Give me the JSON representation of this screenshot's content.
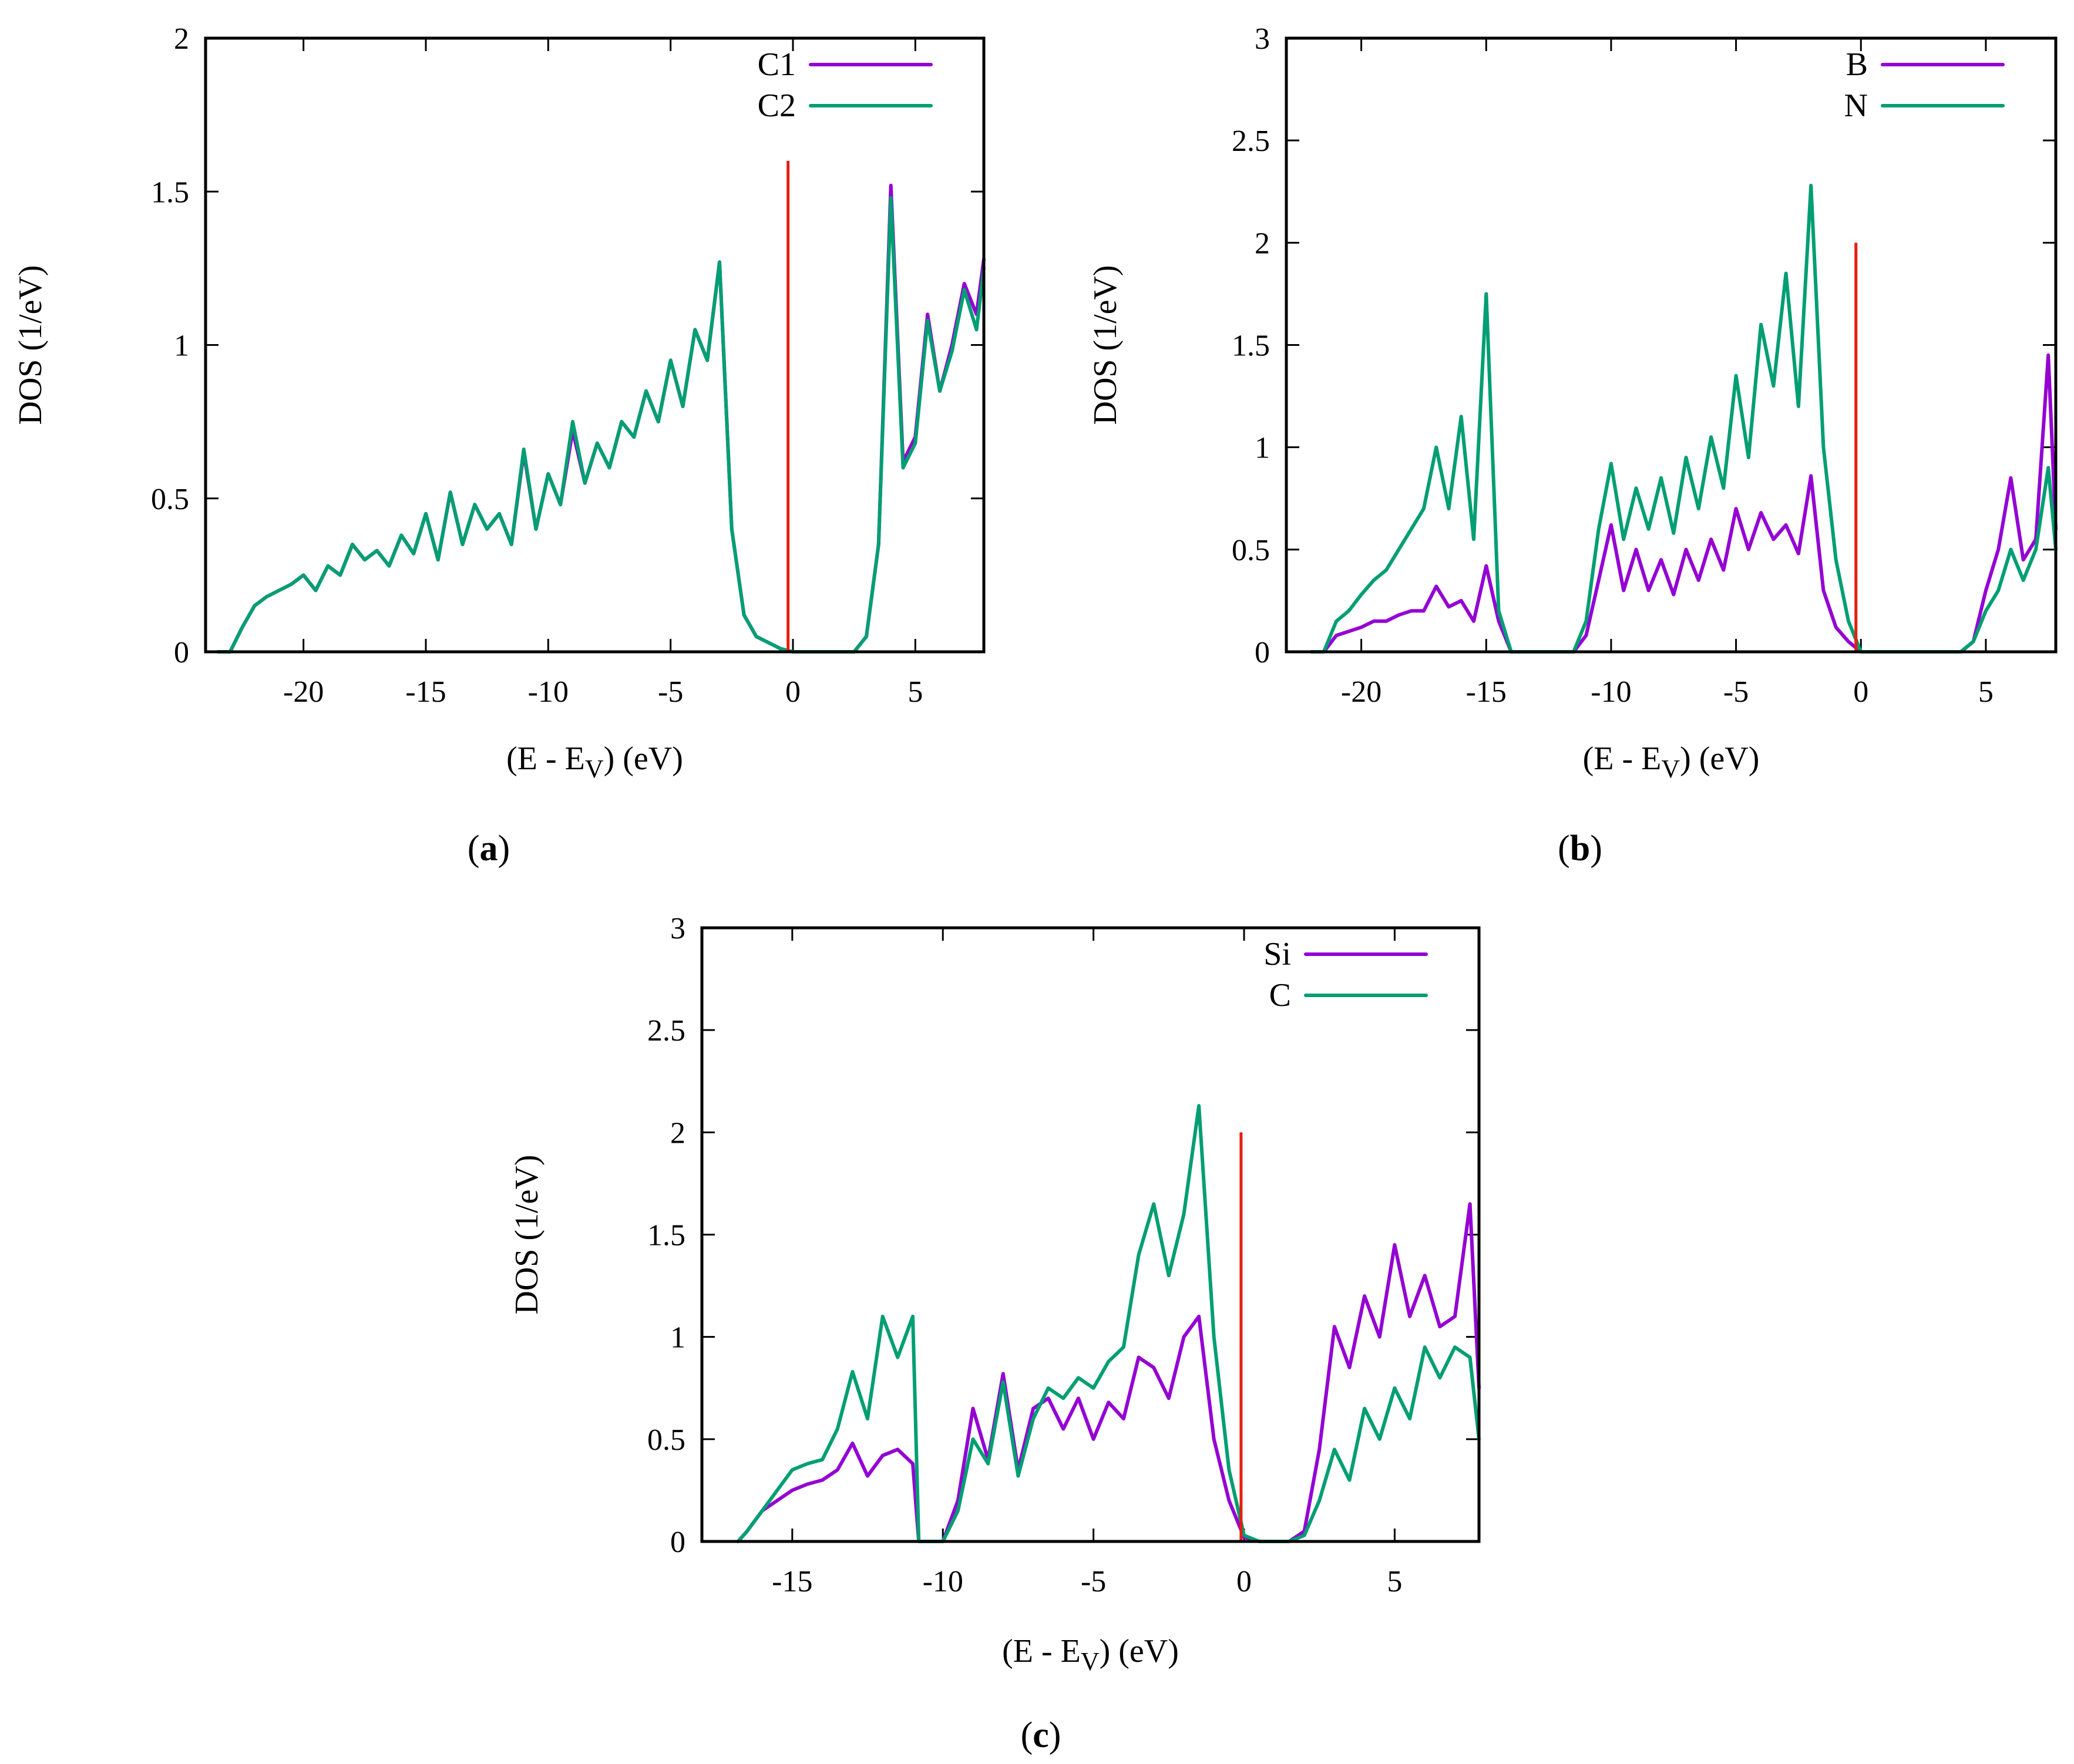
{
  "colors": {
    "purple": "#9400d3",
    "teal": "#009e73",
    "red": "#e51e10",
    "axis": "#000000"
  },
  "chart_data": [
    {
      "id": "a",
      "type": "line",
      "caption": {
        "open": "(",
        "letter": "a",
        "close": ")"
      },
      "xlabel": {
        "main": "(E - E",
        "sub": "V",
        "tail": ") (eV)"
      },
      "ylabel": "DOS (1/eV)",
      "xlim": [
        -24,
        7.8
      ],
      "ylim": [
        0,
        2
      ],
      "xticks": [
        -20,
        -15,
        -10,
        -5,
        0,
        5
      ],
      "yticks": [
        0,
        0.5,
        1,
        1.5,
        2
      ],
      "ytick_labels": [
        "0",
        "0.5",
        "1",
        "1.5",
        "2"
      ],
      "legend": [
        "C1",
        "C2"
      ],
      "marker": {
        "x": -0.2,
        "y": 1.6
      },
      "series": [
        {
          "name": "C1",
          "color": "#9400d3",
          "x": [
            -23.5,
            -23,
            -22.5,
            -22,
            -21.5,
            -21,
            -20.5,
            -20,
            -19.5,
            -19,
            -18.5,
            -18,
            -17.5,
            -17,
            -16.5,
            -16,
            -15.5,
            -15,
            -14.5,
            -14,
            -13.5,
            -13,
            -12.5,
            -12,
            -11.5,
            -11,
            -10.5,
            -10,
            -9.5,
            -9,
            -8.5,
            -8,
            -7.5,
            -7,
            -6.5,
            -6,
            -5.5,
            -5,
            -4.5,
            -4,
            -3.5,
            -3,
            -2.5,
            -2,
            -1.5,
            -1,
            -0.5,
            0,
            0.5,
            1,
            1.5,
            2,
            2.5,
            3,
            3.5,
            4,
            4.5,
            5,
            5.5,
            6,
            6.5,
            7,
            7.5,
            7.8
          ],
          "y": [
            0,
            0,
            0.08,
            0.15,
            0.18,
            0.2,
            0.22,
            0.25,
            0.2,
            0.28,
            0.25,
            0.35,
            0.3,
            0.33,
            0.28,
            0.38,
            0.32,
            0.45,
            0.3,
            0.52,
            0.35,
            0.48,
            0.4,
            0.45,
            0.35,
            0.65,
            0.4,
            0.58,
            0.48,
            0.72,
            0.55,
            0.68,
            0.6,
            0.75,
            0.7,
            0.85,
            0.75,
            0.95,
            0.8,
            1.05,
            0.95,
            1.27,
            0.4,
            0.12,
            0.05,
            0.03,
            0.01,
            0,
            0,
            0,
            0,
            0,
            0,
            0.05,
            0.35,
            1.52,
            0.62,
            0.7,
            1.1,
            0.85,
            1.0,
            1.2,
            1.1,
            1.28
          ]
        },
        {
          "name": "C2",
          "color": "#009e73",
          "x": [
            -23.5,
            -23,
            -22.5,
            -22,
            -21.5,
            -21,
            -20.5,
            -20,
            -19.5,
            -19,
            -18.5,
            -18,
            -17.5,
            -17,
            -16.5,
            -16,
            -15.5,
            -15,
            -14.5,
            -14,
            -13.5,
            -13,
            -12.5,
            -12,
            -11.5,
            -11,
            -10.5,
            -10,
            -9.5,
            -9,
            -8.5,
            -8,
            -7.5,
            -7,
            -6.5,
            -6,
            -5.5,
            -5,
            -4.5,
            -4,
            -3.5,
            -3,
            -2.5,
            -2,
            -1.5,
            -1,
            -0.5,
            0,
            0.5,
            1,
            1.5,
            2,
            2.5,
            3,
            3.5,
            4,
            4.5,
            5,
            5.5,
            6,
            6.5,
            7,
            7.5,
            7.8
          ],
          "y": [
            0,
            0,
            0.08,
            0.15,
            0.18,
            0.2,
            0.22,
            0.25,
            0.2,
            0.28,
            0.25,
            0.35,
            0.3,
            0.33,
            0.28,
            0.38,
            0.32,
            0.45,
            0.3,
            0.52,
            0.35,
            0.48,
            0.4,
            0.45,
            0.35,
            0.66,
            0.4,
            0.58,
            0.48,
            0.75,
            0.55,
            0.68,
            0.6,
            0.75,
            0.7,
            0.85,
            0.75,
            0.95,
            0.8,
            1.05,
            0.95,
            1.27,
            0.4,
            0.12,
            0.05,
            0.03,
            0.01,
            0,
            0,
            0,
            0,
            0,
            0,
            0.05,
            0.35,
            1.48,
            0.6,
            0.68,
            1.08,
            0.85,
            0.98,
            1.18,
            1.05,
            1.25
          ]
        }
      ]
    },
    {
      "id": "b",
      "type": "line",
      "caption": {
        "open": "(",
        "letter": "b",
        "close": ")"
      },
      "xlabel": {
        "main": "(E - E",
        "sub": "V",
        "tail": ") (eV)"
      },
      "ylabel": "DOS (1/eV)",
      "xlim": [
        -23,
        7.8
      ],
      "ylim": [
        0,
        3
      ],
      "xticks": [
        -20,
        -15,
        -10,
        -5,
        0,
        5
      ],
      "yticks": [
        0,
        0.5,
        1,
        1.5,
        2,
        2.5,
        3
      ],
      "ytick_labels": [
        "0",
        "0.5",
        "1",
        "1.5",
        "2",
        "2.5",
        "3"
      ],
      "legend": [
        "B",
        "N"
      ],
      "marker": {
        "x": -0.2,
        "y": 2.0
      },
      "series": [
        {
          "name": "B",
          "color": "#9400d3",
          "x": [
            -22,
            -21.5,
            -21,
            -20.5,
            -20,
            -19.5,
            -19,
            -18.5,
            -18,
            -17.5,
            -17,
            -16.5,
            -16,
            -15.5,
            -15,
            -14.5,
            -14,
            -13,
            -12,
            -11.5,
            -11,
            -10.5,
            -10,
            -9.5,
            -9,
            -8.5,
            -8,
            -7.5,
            -7,
            -6.5,
            -6,
            -5.5,
            -5,
            -4.5,
            -4,
            -3.5,
            -3,
            -2.5,
            -2,
            -1.5,
            -1,
            -0.5,
            0,
            1,
            2,
            3,
            4,
            4.5,
            5,
            5.5,
            6,
            6.5,
            7,
            7.5,
            7.8
          ],
          "y": [
            0,
            0,
            0.08,
            0.1,
            0.12,
            0.15,
            0.15,
            0.18,
            0.2,
            0.2,
            0.32,
            0.22,
            0.25,
            0.15,
            0.42,
            0.15,
            0,
            0,
            0,
            0,
            0.08,
            0.35,
            0.62,
            0.3,
            0.5,
            0.3,
            0.45,
            0.28,
            0.5,
            0.35,
            0.55,
            0.4,
            0.7,
            0.5,
            0.68,
            0.55,
            0.62,
            0.48,
            0.86,
            0.3,
            0.12,
            0.05,
            0,
            0,
            0,
            0,
            0,
            0.05,
            0.3,
            0.5,
            0.85,
            0.45,
            0.55,
            1.45,
            0.6
          ]
        },
        {
          "name": "N",
          "color": "#009e73",
          "x": [
            -22,
            -21.5,
            -21,
            -20.5,
            -20,
            -19.5,
            -19,
            -18.5,
            -18,
            -17.5,
            -17,
            -16.5,
            -16,
            -15.5,
            -15,
            -14.5,
            -14,
            -13,
            -12,
            -11.5,
            -11,
            -10.5,
            -10,
            -9.5,
            -9,
            -8.5,
            -8,
            -7.5,
            -7,
            -6.5,
            -6,
            -5.5,
            -5,
            -4.5,
            -4,
            -3.5,
            -3,
            -2.5,
            -2,
            -1.5,
            -1,
            -0.5,
            0,
            1,
            2,
            3,
            4,
            4.5,
            5,
            5.5,
            6,
            6.5,
            7,
            7.5,
            7.8
          ],
          "y": [
            0,
            0,
            0.15,
            0.2,
            0.28,
            0.35,
            0.4,
            0.5,
            0.6,
            0.7,
            1.0,
            0.7,
            1.15,
            0.55,
            1.75,
            0.2,
            0,
            0,
            0,
            0,
            0.15,
            0.6,
            0.92,
            0.55,
            0.8,
            0.6,
            0.85,
            0.58,
            0.95,
            0.7,
            1.05,
            0.8,
            1.35,
            0.95,
            1.6,
            1.3,
            1.85,
            1.2,
            2.28,
            1.0,
            0.45,
            0.15,
            0,
            0,
            0,
            0,
            0,
            0.05,
            0.2,
            0.3,
            0.5,
            0.35,
            0.5,
            0.9,
            0.5
          ]
        }
      ]
    },
    {
      "id": "c",
      "type": "line",
      "caption": {
        "open": "(",
        "letter": "c",
        "close": ")"
      },
      "xlabel": {
        "main": "(E - E",
        "sub": "V",
        "tail": ") (eV)"
      },
      "ylabel": "DOS (1/eV)",
      "xlim": [
        -18,
        7.8
      ],
      "ylim": [
        0,
        3
      ],
      "xticks": [
        -15,
        -10,
        -5,
        0,
        5
      ],
      "yticks": [
        0,
        0.5,
        1,
        1.5,
        2,
        2.5,
        3
      ],
      "ytick_labels": [
        "0",
        "0.5",
        "1",
        "1.5",
        "2",
        "2.5",
        "3"
      ],
      "legend": [
        "Si",
        "C"
      ],
      "marker": {
        "x": -0.1,
        "y": 2.0
      },
      "series": [
        {
          "name": "Si",
          "color": "#9400d3",
          "x": [
            -16.8,
            -16.5,
            -16,
            -15.5,
            -15,
            -14.5,
            -14,
            -13.5,
            -13,
            -12.5,
            -12,
            -11.5,
            -11,
            -10.8,
            -10.5,
            -10,
            -9.5,
            -9,
            -8.5,
            -8,
            -7.5,
            -7,
            -6.5,
            -6,
            -5.5,
            -5,
            -4.5,
            -4,
            -3.5,
            -3,
            -2.5,
            -2,
            -1.5,
            -1,
            -0.5,
            0,
            0.5,
            1,
            1.5,
            2,
            2.5,
            3,
            3.5,
            4,
            4.5,
            5,
            5.5,
            6,
            6.5,
            7,
            7.5,
            7.8
          ],
          "y": [
            0,
            0.05,
            0.15,
            0.2,
            0.25,
            0.28,
            0.3,
            0.35,
            0.48,
            0.32,
            0.42,
            0.45,
            0.38,
            0.0,
            0,
            0,
            0.2,
            0.65,
            0.4,
            0.82,
            0.35,
            0.65,
            0.7,
            0.55,
            0.7,
            0.5,
            0.68,
            0.6,
            0.9,
            0.85,
            0.7,
            1.0,
            1.1,
            0.5,
            0.2,
            0.02,
            0,
            0,
            0,
            0.05,
            0.45,
            1.05,
            0.85,
            1.2,
            1.0,
            1.45,
            1.1,
            1.3,
            1.05,
            1.1,
            1.65,
            0.75
          ]
        },
        {
          "name": "C",
          "color": "#009e73",
          "x": [
            -16.8,
            -16.5,
            -16,
            -15.5,
            -15,
            -14.5,
            -14,
            -13.5,
            -13,
            -12.5,
            -12,
            -11.5,
            -11,
            -10.8,
            -10.5,
            -10,
            -9.5,
            -9,
            -8.5,
            -8,
            -7.5,
            -7,
            -6.5,
            -6,
            -5.5,
            -5,
            -4.5,
            -4,
            -3.5,
            -3,
            -2.5,
            -2,
            -1.5,
            -1,
            -0.5,
            0,
            0.5,
            1,
            1.5,
            2,
            2.5,
            3,
            3.5,
            4,
            4.5,
            5,
            5.5,
            6,
            6.5,
            7,
            7.5,
            7.8
          ],
          "y": [
            0,
            0.05,
            0.15,
            0.25,
            0.35,
            0.38,
            0.4,
            0.55,
            0.83,
            0.6,
            1.1,
            0.9,
            1.1,
            0.0,
            0,
            0,
            0.15,
            0.5,
            0.38,
            0.78,
            0.32,
            0.6,
            0.75,
            0.7,
            0.8,
            0.75,
            0.88,
            0.95,
            1.4,
            1.65,
            1.3,
            1.6,
            2.13,
            1.0,
            0.35,
            0.03,
            0,
            0,
            0,
            0.03,
            0.2,
            0.45,
            0.3,
            0.65,
            0.5,
            0.75,
            0.6,
            0.95,
            0.8,
            0.95,
            0.9,
            0.5
          ]
        }
      ]
    }
  ]
}
